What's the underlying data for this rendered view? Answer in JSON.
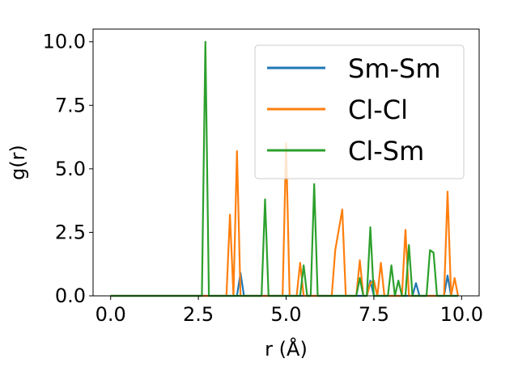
{
  "chart_data": {
    "type": "line",
    "xlabel": "r (Å)",
    "ylabel": "g(r)",
    "xlim": [
      -0.5,
      10.5
    ],
    "ylim": [
      0,
      10.5
    ],
    "xticks": [
      "0.0",
      "2.5",
      "5.0",
      "7.5",
      "10.0"
    ],
    "yticks": [
      "0.0",
      "2.5",
      "5.0",
      "7.5",
      "10.0"
    ],
    "grid": false,
    "legend_position": "top-right",
    "x": [
      0.0,
      0.1,
      0.2,
      0.3,
      0.4,
      0.5,
      0.6,
      0.7,
      0.8,
      0.9,
      1.0,
      1.1,
      1.2,
      1.3,
      1.4,
      1.5,
      1.6,
      1.7,
      1.8,
      1.9,
      2.0,
      2.1,
      2.2,
      2.3,
      2.4,
      2.5,
      2.6,
      2.7,
      2.8,
      2.9,
      3.0,
      3.1,
      3.2,
      3.3,
      3.4,
      3.5,
      3.6,
      3.7,
      3.8,
      3.9,
      4.0,
      4.1,
      4.2,
      4.3,
      4.4,
      4.5,
      4.6,
      4.7,
      4.8,
      4.9,
      5.0,
      5.1,
      5.2,
      5.3,
      5.4,
      5.5,
      5.6,
      5.7,
      5.8,
      5.9,
      6.0,
      6.1,
      6.2,
      6.3,
      6.4,
      6.5,
      6.6,
      6.7,
      6.8,
      6.9,
      7.0,
      7.1,
      7.2,
      7.3,
      7.4,
      7.5,
      7.6,
      7.7,
      7.8,
      7.9,
      8.0,
      8.1,
      8.2,
      8.3,
      8.4,
      8.5,
      8.6,
      8.7,
      8.8,
      8.9,
      9.0,
      9.1,
      9.2,
      9.3,
      9.4,
      9.5,
      9.6,
      9.7,
      9.8,
      9.9
    ],
    "series": [
      {
        "name": "Sm-Sm",
        "color": "#1f77b4",
        "values": [
          0,
          0,
          0,
          0,
          0,
          0,
          0,
          0,
          0,
          0,
          0,
          0,
          0,
          0,
          0,
          0,
          0,
          0,
          0,
          0,
          0,
          0,
          0,
          0,
          0,
          0,
          0,
          0,
          0,
          0,
          0,
          0,
          0,
          0,
          0,
          0,
          0,
          0.9,
          0,
          0,
          0,
          0,
          0,
          0,
          0,
          0,
          0,
          0,
          0,
          0,
          0,
          0,
          0,
          0,
          0,
          0,
          0,
          0,
          0,
          0,
          0,
          0,
          0,
          0,
          0,
          0,
          0,
          0,
          0,
          0,
          0,
          0,
          0,
          0,
          0.6,
          0,
          0,
          0,
          0,
          0,
          0,
          0,
          0,
          0,
          0,
          0,
          0,
          0.5,
          0,
          0,
          0,
          0,
          0,
          0,
          0,
          0,
          0.8,
          0,
          0,
          0
        ]
      },
      {
        "name": "Cl-Cl",
        "color": "#ff7f0e",
        "values": [
          0,
          0,
          0,
          0,
          0,
          0,
          0,
          0,
          0,
          0,
          0,
          0,
          0,
          0,
          0,
          0,
          0,
          0,
          0,
          0,
          0,
          0,
          0,
          0,
          0,
          0,
          0,
          0,
          0,
          0,
          0,
          0,
          0,
          0,
          3.2,
          0,
          5.7,
          0,
          0,
          0,
          0,
          0,
          0,
          0,
          0,
          0,
          0,
          0,
          0,
          0,
          6.0,
          0,
          0,
          0,
          1.3,
          0,
          0,
          0,
          0,
          0,
          0,
          0,
          0,
          0,
          1.8,
          2.6,
          3.4,
          0,
          0,
          0,
          0,
          1.4,
          0,
          0,
          0.5,
          0.6,
          0,
          1.3,
          0,
          0,
          0,
          0,
          0,
          0,
          2.6,
          0,
          0,
          0,
          0,
          0,
          0,
          0,
          0,
          0,
          0,
          0,
          4.1,
          0,
          0.7,
          0
        ]
      },
      {
        "name": "Cl-Sm",
        "color": "#2ca02c",
        "values": [
          0,
          0,
          0,
          0,
          0,
          0,
          0,
          0,
          0,
          0,
          0,
          0,
          0,
          0,
          0,
          0,
          0,
          0,
          0,
          0,
          0,
          0,
          0,
          0,
          0,
          0,
          0,
          10.0,
          0,
          0,
          0,
          0,
          0,
          0,
          0,
          0,
          0,
          0,
          0,
          0,
          0,
          0,
          0,
          0,
          3.8,
          0,
          0,
          0,
          0,
          0,
          0,
          0,
          0,
          0,
          0,
          1.2,
          0,
          0,
          4.4,
          0,
          0,
          0,
          0,
          0,
          0,
          0,
          0,
          0,
          0,
          0,
          0,
          0.7,
          0,
          0,
          2.7,
          0,
          0,
          0,
          0,
          0,
          1.2,
          0,
          0.6,
          0,
          0,
          2.0,
          0,
          0,
          0,
          0,
          0,
          1.8,
          1.7,
          0,
          0,
          0,
          0,
          0,
          0,
          0
        ]
      }
    ]
  }
}
